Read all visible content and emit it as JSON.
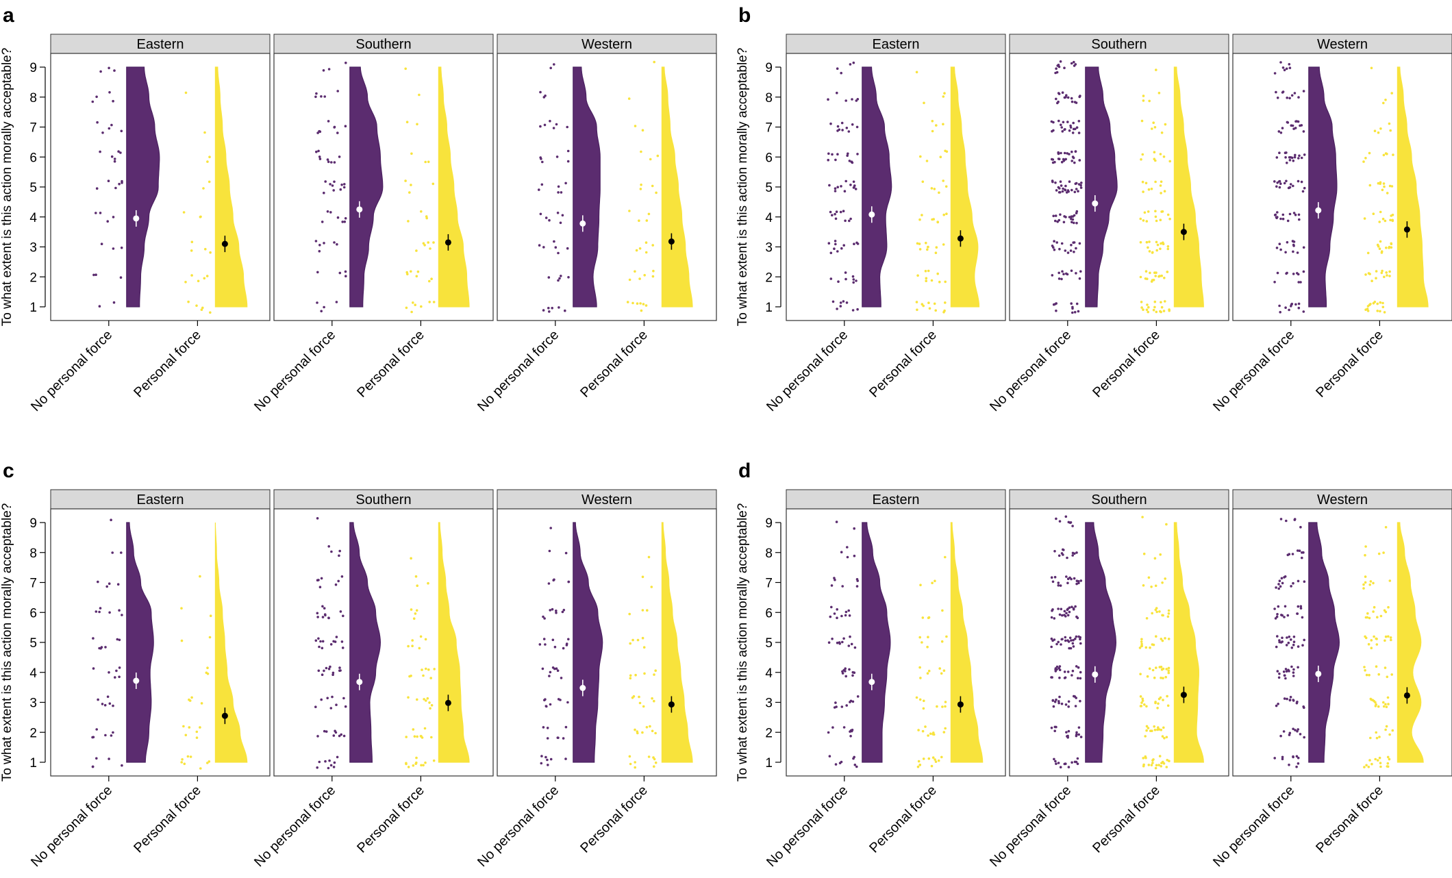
{
  "colors": {
    "no_personal_force": "#5b2c6f",
    "personal_force": "#f8e33c",
    "strip_fill": "#d9d9d9",
    "frame": "#333333"
  },
  "chart_data": [
    {
      "type": "raincloud",
      "panel_label": "a",
      "ylabel": "To what extent is this action morally acceptable?",
      "ylim": [
        1,
        9
      ],
      "yticks": [
        "1",
        "2",
        "3",
        "4",
        "5",
        "6",
        "7",
        "8",
        "9"
      ],
      "categories": [
        "No personal force",
        "Personal force"
      ],
      "facets": [
        {
          "label": "Eastern",
          "means": [
            3.95,
            3.1
          ],
          "n": [
            38,
            24
          ],
          "dist": [
            [
              0.55,
              0.6,
              0.75,
              0.95,
              1.35,
              1.4,
              1.2,
              0.95,
              0.75
            ],
            [
              1.35,
              1.2,
              1.0,
              0.75,
              0.6,
              0.45,
              0.3,
              0.2,
              0.1
            ]
          ]
        },
        {
          "label": "Southern",
          "means": [
            4.25,
            3.15
          ],
          "n": [
            58,
            34
          ],
          "dist": [
            [
              0.55,
              0.6,
              0.8,
              1.0,
              1.4,
              1.3,
              1.15,
              0.75,
              0.45
            ],
            [
              1.3,
              1.2,
              1.05,
              0.8,
              0.65,
              0.5,
              0.35,
              0.2,
              0.1
            ]
          ]
        },
        {
          "label": "Western",
          "means": [
            3.78,
            3.18
          ],
          "n": [
            46,
            32
          ],
          "dist": [
            [
              1.0,
              0.85,
              1.05,
              1.1,
              1.15,
              1.15,
              1.0,
              0.55,
              0.35
            ],
            [
              1.3,
              1.15,
              1.0,
              0.85,
              0.7,
              0.55,
              0.35,
              0.25,
              0.1
            ]
          ]
        }
      ]
    },
    {
      "type": "raincloud",
      "panel_label": "b",
      "ylabel": "To what extent is this action morally acceptable?",
      "ylim": [
        1,
        9
      ],
      "yticks": [
        "1",
        "2",
        "3",
        "4",
        "5",
        "6",
        "7",
        "8",
        "9"
      ],
      "categories": [
        "No personal force",
        "Personal force"
      ],
      "facets": [
        {
          "label": "Eastern",
          "means": [
            4.08,
            3.28
          ],
          "n": [
            80,
            58
          ],
          "dist": [
            [
              0.8,
              0.75,
              1.05,
              1.0,
              1.25,
              1.15,
              0.95,
              0.6,
              0.4
            ],
            [
              1.2,
              1.0,
              1.15,
              0.9,
              0.7,
              0.6,
              0.45,
              0.3,
              0.15
            ]
          ]
        },
        {
          "label": "Southern",
          "means": [
            4.45,
            3.5
          ],
          "n": [
            165,
            95
          ],
          "dist": [
            [
              0.5,
              0.55,
              0.75,
              1.0,
              1.35,
              1.25,
              1.05,
              0.75,
              0.55
            ],
            [
              1.25,
              1.15,
              1.05,
              0.9,
              0.7,
              0.55,
              0.4,
              0.25,
              0.1
            ]
          ]
        },
        {
          "label": "Western",
          "means": [
            4.22,
            3.58
          ],
          "n": [
            115,
            78
          ],
          "dist": [
            [
              0.75,
              0.7,
              0.9,
              1.05,
              1.2,
              1.15,
              1.0,
              0.65,
              0.45
            ],
            [
              1.3,
              1.1,
              1.05,
              0.95,
              0.8,
              0.6,
              0.4,
              0.25,
              0.1
            ]
          ]
        }
      ]
    },
    {
      "type": "raincloud",
      "panel_label": "c",
      "ylabel": "To what extent is this action morally acceptable?",
      "ylim": [
        1,
        9
      ],
      "yticks": [
        "1",
        "2",
        "3",
        "4",
        "5",
        "6",
        "7",
        "8",
        "9"
      ],
      "categories": [
        "No personal force",
        "Personal force"
      ],
      "facets": [
        {
          "label": "Eastern",
          "means": [
            3.72,
            2.55
          ],
          "n": [
            42,
            26
          ],
          "dist": [
            [
              0.8,
              0.95,
              1.05,
              1.0,
              1.15,
              1.05,
              0.6,
              0.3,
              0.12
            ],
            [
              1.35,
              1.05,
              0.75,
              0.5,
              0.4,
              0.3,
              0.15,
              0.05,
              0.0
            ]
          ]
        },
        {
          "label": "Southern",
          "means": [
            3.68,
            2.98
          ],
          "n": [
            72,
            50
          ],
          "dist": [
            [
              0.95,
              0.9,
              0.85,
              1.1,
              1.3,
              1.1,
              0.75,
              0.4,
              0.15
            ],
            [
              1.3,
              1.05,
              0.95,
              0.9,
              0.75,
              0.45,
              0.3,
              0.15,
              0.05
            ]
          ]
        },
        {
          "label": "Western",
          "means": [
            3.48,
            2.93
          ],
          "n": [
            55,
            40
          ],
          "dist": [
            [
              0.9,
              0.95,
              1.05,
              1.1,
              1.25,
              1.05,
              0.65,
              0.3,
              0.1
            ],
            [
              1.3,
              1.1,
              0.95,
              0.8,
              0.65,
              0.45,
              0.3,
              0.15,
              0.05
            ]
          ]
        }
      ]
    },
    {
      "type": "raincloud",
      "panel_label": "d",
      "ylabel": "To what extent is this action morally acceptable?",
      "ylim": [
        1,
        9
      ],
      "yticks": [
        "1",
        "2",
        "3",
        "4",
        "5",
        "6",
        "7",
        "8",
        "9"
      ],
      "categories": [
        "No personal force",
        "Personal force"
      ],
      "facets": [
        {
          "label": "Eastern",
          "means": [
            3.68,
            2.93
          ],
          "n": [
            70,
            52
          ],
          "dist": [
            [
              0.85,
              0.85,
              0.95,
              1.05,
              1.2,
              1.05,
              0.75,
              0.45,
              0.2
            ],
            [
              1.35,
              1.15,
              0.95,
              0.85,
              0.7,
              0.5,
              0.3,
              0.15,
              0.05
            ]
          ]
        },
        {
          "label": "Southern",
          "means": [
            3.93,
            3.25
          ],
          "n": [
            150,
            110
          ],
          "dist": [
            [
              0.7,
              0.75,
              0.85,
              1.1,
              1.3,
              1.15,
              0.85,
              0.55,
              0.35
            ],
            [
              1.25,
              0.95,
              1.0,
              1.05,
              0.9,
              0.65,
              0.35,
              0.2,
              0.1
            ]
          ]
        },
        {
          "label": "Western",
          "means": [
            3.95,
            3.23
          ],
          "n": [
            110,
            85
          ],
          "dist": [
            [
              0.65,
              0.7,
              0.9,
              1.05,
              1.3,
              1.1,
              0.85,
              0.55,
              0.35
            ],
            [
              1.1,
              0.6,
              1.0,
              0.65,
              1.0,
              0.75,
              0.55,
              0.3,
              0.1
            ]
          ]
        }
      ]
    }
  ]
}
